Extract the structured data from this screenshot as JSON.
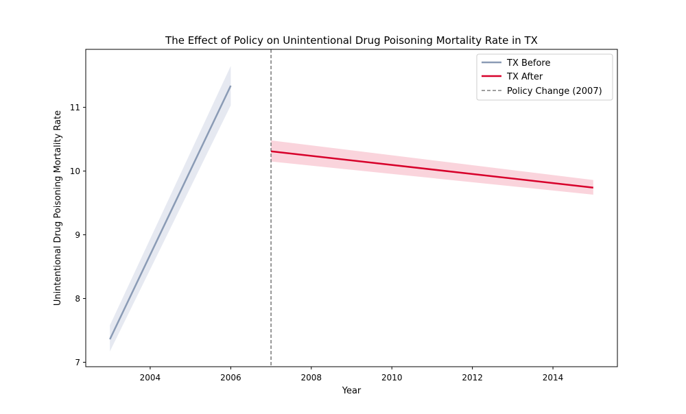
{
  "chart_data": {
    "type": "line",
    "title": "The Effect of Policy on Unintentional Drug Poisoning Mortality Rate in TX",
    "xlabel": "Year",
    "ylabel": "Unintentional Drug Poisoning Mortality Rate",
    "xlim": [
      2002.4,
      2015.6
    ],
    "ylim": [
      6.93,
      11.91
    ],
    "xticks": [
      2004,
      2006,
      2008,
      2010,
      2012,
      2014
    ],
    "yticks": [
      7,
      8,
      9,
      10,
      11
    ],
    "grid": false,
    "legend_position": "top-right",
    "series": [
      {
        "name": "TX Before",
        "color": "#8a9bb5",
        "band_color": "#d6dbe8",
        "x": [
          2003,
          2006
        ],
        "y": [
          7.36,
          11.34
        ],
        "lower": [
          7.17,
          11.03
        ],
        "upper": [
          7.58,
          11.65
        ]
      },
      {
        "name": "TX After",
        "color": "#d7002a",
        "band_color": "#f6b8c5",
        "x": [
          2007,
          2015
        ],
        "y": [
          10.31,
          9.74
        ],
        "lower": [
          10.15,
          9.63
        ],
        "upper": [
          10.48,
          9.86
        ]
      }
    ],
    "vline": {
      "name": "Policy Change (2007)",
      "x": 2007,
      "color": "#7f7f7f"
    }
  }
}
